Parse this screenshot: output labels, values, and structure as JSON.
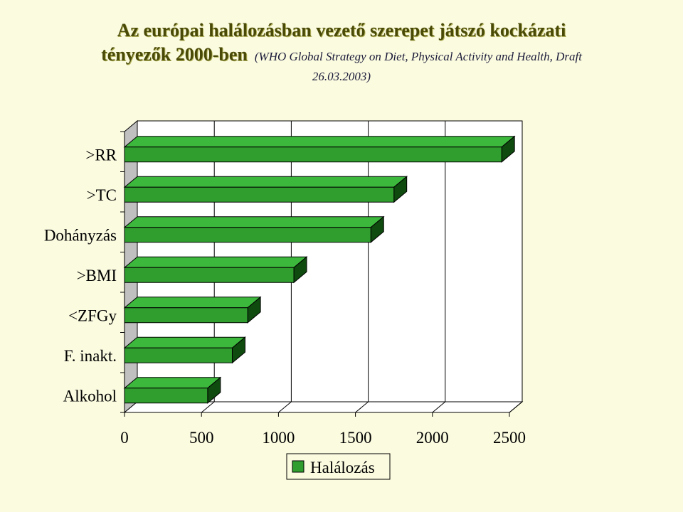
{
  "title": {
    "line1": "Az európai halálozásban vezető szerepet játszó kockázati",
    "line2": "tényezők 2000-ben",
    "source": "(WHO Global Strategy on Diet, Physical Activity and Health, Draft",
    "date": "26.03.2003)"
  },
  "chart_data": {
    "type": "bar",
    "orientation": "horizontal",
    "categories": [
      ">RR",
      ">TC",
      "Dohányzás",
      ">BMI",
      "<ZFGy",
      "F. inakt.",
      "Alkohol"
    ],
    "series": [
      {
        "name": "Halálozás",
        "values": [
          2450,
          1750,
          1600,
          1100,
          800,
          700,
          540
        ]
      }
    ],
    "xlim": [
      0,
      2500
    ],
    "xticks": [
      "0",
      "500",
      "1000",
      "1500",
      "2000",
      "2500"
    ],
    "grid": true,
    "legend": "bottom",
    "colors": {
      "bar_front": "#2f9e2f",
      "bar_top": "#3cb83c",
      "bar_side": "#0f4a0f",
      "wall": "#c0c0c0"
    }
  }
}
